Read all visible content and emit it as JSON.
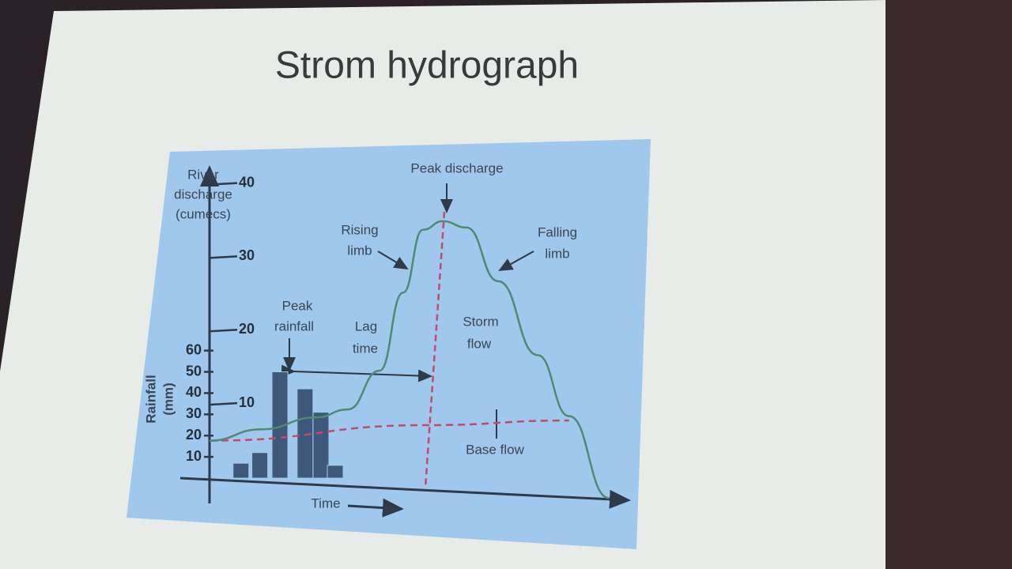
{
  "slide_title": "Strom hydrograph",
  "chart_data": {
    "type": "hydrograph",
    "y_label": [
      "River",
      "discharge",
      "(cumecs)"
    ],
    "y2_label": [
      "Rainfall",
      "(mm)"
    ],
    "x_label": "Time",
    "xlim": [
      0,
      100
    ],
    "ylim": [
      0,
      42
    ],
    "yticks": [
      10,
      20,
      30,
      40
    ],
    "y2lim": [
      0,
      145
    ],
    "y2ticks": [
      10,
      20,
      30,
      40,
      50,
      60
    ],
    "rainfall": {
      "axis": "y2",
      "color": "#3d5878",
      "x": [
        7.5,
        12,
        16.8,
        22.8,
        26.6,
        30
      ],
      "values": [
        7,
        12,
        50,
        42,
        31,
        6
      ]
    },
    "discharge": {
      "color": "#4f8a72",
      "x": [
        0,
        12.3,
        25.5,
        33,
        40.6,
        46.2,
        50.9,
        55.7,
        61.3,
        68.9,
        78.3,
        85.8,
        95.3
      ],
      "values": [
        5.1,
        7,
        9,
        10.3,
        15.8,
        26.6,
        35.3,
        36.6,
        35.9,
        28.8,
        19,
        10.9,
        0
      ]
    },
    "base_flow": {
      "color": "#c24a6a",
      "x": [
        0,
        51.9,
        85.8
      ],
      "values": [
        5.1,
        8.7,
        10.3
      ]
    },
    "annotations": {
      "peak_discharge": "Peak discharge",
      "rising_limb": [
        "Rising",
        "limb"
      ],
      "falling_limb": [
        "Falling",
        "limb"
      ],
      "peak_rainfall": [
        "Peak",
        "rainfall"
      ],
      "lag_time": [
        "Lag",
        "time"
      ],
      "storm_flow": [
        "Storm",
        "flow"
      ],
      "base_flow": "Base flow"
    }
  }
}
